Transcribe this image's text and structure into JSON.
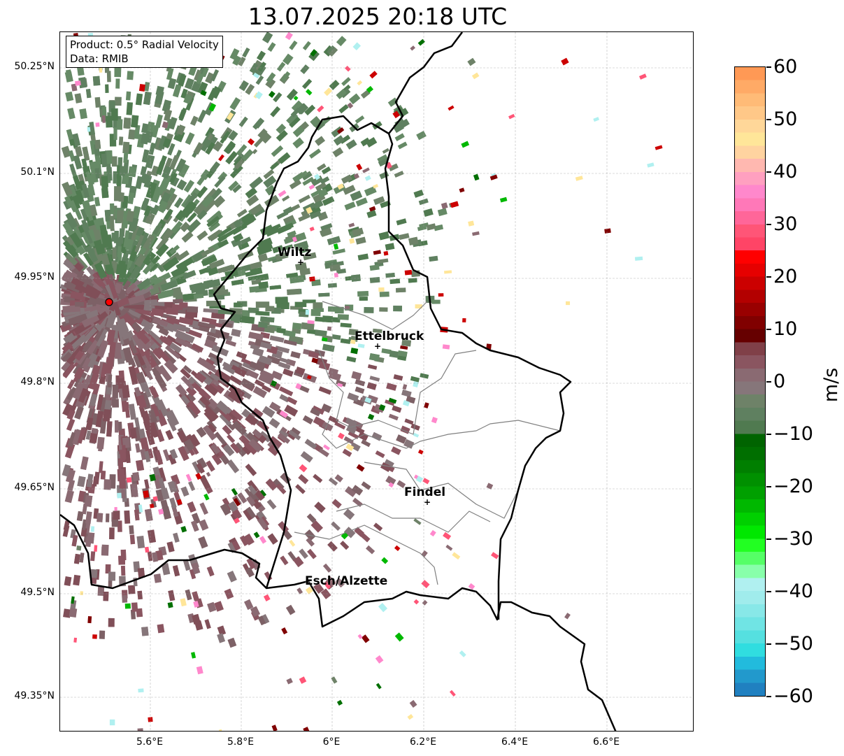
{
  "title": "13.07.2025 20:18 UTC",
  "info": {
    "product": "Product: 0.5° Radial Velocity",
    "data": "Data: RMIB"
  },
  "lat_ticks": [
    "50.25°N",
    "50.1°N",
    "49.95°N",
    "49.8°N",
    "49.65°N",
    "49.5°N",
    "49.35°N"
  ],
  "lon_ticks": [
    "5.6°E",
    "5.8°E",
    "6°E",
    "6.2°E",
    "6.4°E",
    "6.6°E"
  ],
  "colorbar": {
    "label": "m/s",
    "ticks": [
      "60",
      "50",
      "40",
      "30",
      "20",
      "10",
      "0",
      "−10",
      "−20",
      "−30",
      "−40",
      "−50",
      "−60"
    ],
    "range": [
      -60,
      60
    ],
    "colors": [
      "#ff9955",
      "#ffaa66",
      "#ffbb77",
      "#ffc888",
      "#ffd799",
      "#ffe699",
      "#ffd3a0",
      "#ffb8b0",
      "#ffa0c0",
      "#ff88cc",
      "#ff78b8",
      "#ff6699",
      "#ff5577",
      "#ff4466",
      "#ff0000",
      "#e60000",
      "#cc0000",
      "#b30000",
      "#990000",
      "#800000",
      "#660000",
      "#804048",
      "#8a5560",
      "#8a6a72",
      "#86767a",
      "#6e8268",
      "#5f8060",
      "#507a50",
      "#006400",
      "#006f00",
      "#007f00",
      "#009000",
      "#00a000",
      "#00b800",
      "#00d000",
      "#00e800",
      "#22ff22",
      "#55ff66",
      "#88ffaa",
      "#b0f0f0",
      "#a0ecec",
      "#88e8e8",
      "#70e4e4",
      "#55e0e0",
      "#30dde0",
      "#22bbdd",
      "#2299cc",
      "#2080c0"
    ]
  },
  "cities": [
    {
      "name": "Wiltz"
    },
    {
      "name": "Ettelbruck"
    },
    {
      "name": "Findel"
    },
    {
      "name": "Esch/Alzette"
    }
  ],
  "radar_site_color": "#ff0000"
}
